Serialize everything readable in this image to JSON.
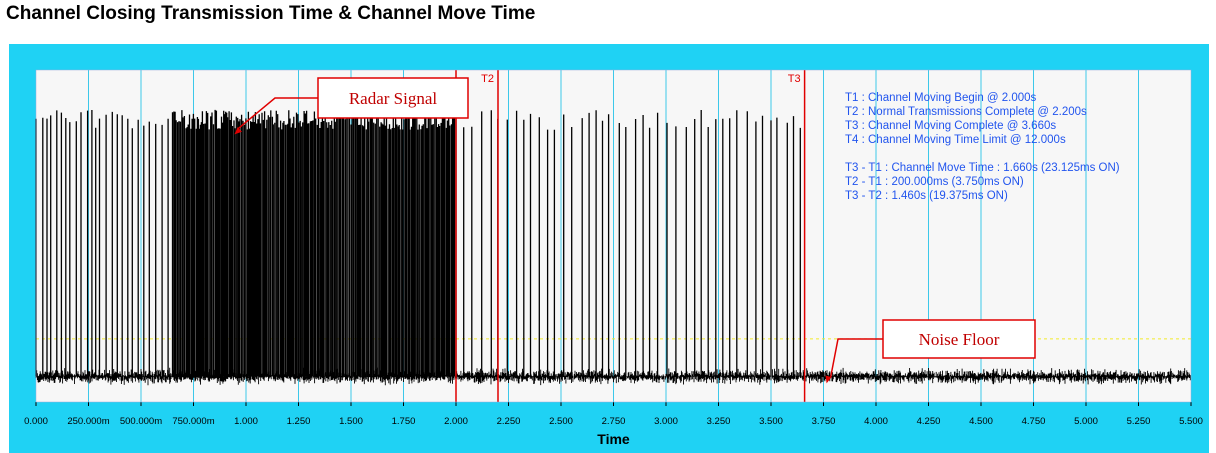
{
  "page": {
    "title": "Channel Closing Transmission Time & Channel Move Time"
  },
  "chart_data": {
    "type": "line",
    "title": "Channel Closing Transmission Time & Channel Move Time",
    "xlabel": "Time",
    "ylabel": "",
    "xlim": [
      0,
      5.5
    ],
    "x_unit": "s",
    "xticks": [
      "0.000",
      "250.000m",
      "500.000m",
      "750.000m",
      "1.000",
      "1.250",
      "1.500",
      "1.750",
      "2.000",
      "2.250",
      "2.500",
      "2.750",
      "3.000",
      "3.250",
      "3.500",
      "3.750",
      "4.000",
      "4.250",
      "4.500",
      "4.750",
      "5.000",
      "5.250",
      "5.500"
    ],
    "grid": "vertical",
    "noise_floor_level": 0.14,
    "signal_peak_level": 0.88,
    "markers": [
      {
        "name": "T1",
        "x": 2.0,
        "label": "",
        "color": "#e00000"
      },
      {
        "name": "T2",
        "x": 2.2,
        "label": "T2",
        "color": "#e00000"
      },
      {
        "name": "T3",
        "x": 3.66,
        "label": "T3",
        "color": "#e00000"
      }
    ],
    "info_lines": [
      "T1 : Channel Moving Begin @ 2.000s",
      "T2 : Normal Transmissions Complete @ 2.200s",
      "T3 : Channel Moving Complete @ 3.660s",
      "T4 : Channel Moving Time Limit @ 12.000s",
      "",
      "T3 - T1 : Channel Move Time : 1.660s (23.125ms ON)",
      "T2 - T1 : 200.000ms (3.750ms ON)",
      "T3 - T2 : 1.460s (19.375ms ON)"
    ],
    "annotations": [
      {
        "text": "Radar Signal",
        "target_x": 0.94,
        "target_level": 0.8
      },
      {
        "text": "Noise Floor",
        "target_x": 3.76,
        "target_level": 0.05
      }
    ],
    "pulse_regions": [
      {
        "from": 0.0,
        "to": 0.65,
        "spacing": 0.025
      },
      {
        "from": 0.65,
        "to": 2.0,
        "spacing": 0.006
      },
      {
        "from": 2.0,
        "to": 3.66,
        "spacing": 0.04
      }
    ],
    "colors": {
      "frame": "#1fd2f4",
      "plot_bg": "#f7f7f7",
      "grid": "#3cc8ea",
      "signal": "#000000",
      "marker": "#e00000",
      "info_text": "#2255ee",
      "noise_floor_line": "#f2ea2a"
    }
  }
}
